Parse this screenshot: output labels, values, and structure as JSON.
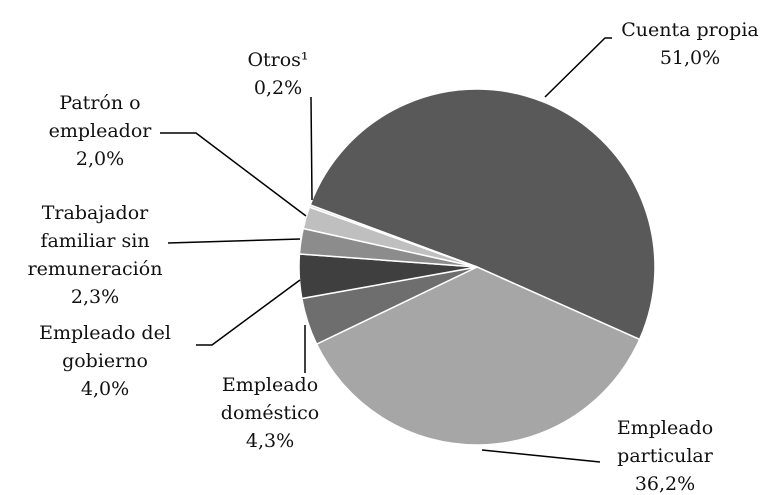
{
  "chart_data": {
    "type": "pie",
    "categories": [
      "Cuenta propia",
      "Empleado particular",
      "Empleado doméstico",
      "Empleado del gobierno",
      "Trabajador familiar sin remuneración",
      "Patrón o empleador",
      "Otros¹"
    ],
    "values": [
      51.0,
      36.2,
      4.3,
      4.0,
      2.3,
      2.0,
      0.2
    ],
    "value_labels": [
      "51,0%",
      "36,2%",
      "4,3%",
      "4,0%",
      "2,3%",
      "2,0%",
      "0,2%"
    ],
    "colors": [
      "#595959",
      "#a6a6a6",
      "#6e6e6e",
      "#3f3f3f",
      "#8c8c8c",
      "#bfbfbf",
      "#d9d9d9"
    ]
  }
}
